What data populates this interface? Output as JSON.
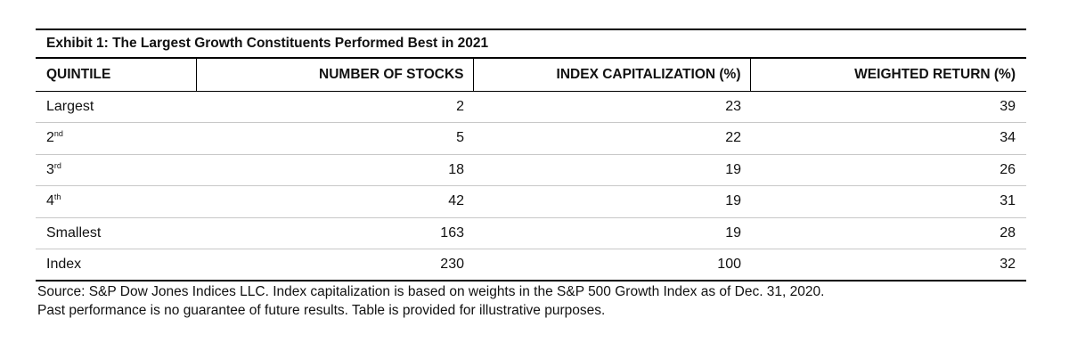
{
  "exhibit": {
    "title": "Exhibit 1: The Largest Growth Constituents Performed Best in 2021",
    "columns": [
      "QUINTILE",
      "NUMBER OF STOCKS",
      "INDEX CAPITALIZATION (%)",
      "WEIGHTED RETURN (%)"
    ],
    "rows": [
      {
        "quintile": "Largest",
        "suffix": "",
        "stocks": "2",
        "cap": "23",
        "ret": "39"
      },
      {
        "quintile": "2",
        "suffix": "nd",
        "stocks": "5",
        "cap": "22",
        "ret": "34"
      },
      {
        "quintile": "3",
        "suffix": "rd",
        "stocks": "18",
        "cap": "19",
        "ret": "26"
      },
      {
        "quintile": "4",
        "suffix": "th",
        "stocks": "42",
        "cap": "19",
        "ret": "31"
      },
      {
        "quintile": "Smallest",
        "suffix": "",
        "stocks": "163",
        "cap": "19",
        "ret": "28"
      },
      {
        "quintile": "Index",
        "suffix": "",
        "stocks": "230",
        "cap": "100",
        "ret": "32"
      }
    ],
    "source_line1": "Source: S&P Dow Jones Indices LLC. Index capitalization is based on weights in the S&P 500 Growth Index as of Dec. 31, 2020.",
    "source_line2": "Past performance is no guarantee of future results. Table is provided for illustrative purposes."
  }
}
